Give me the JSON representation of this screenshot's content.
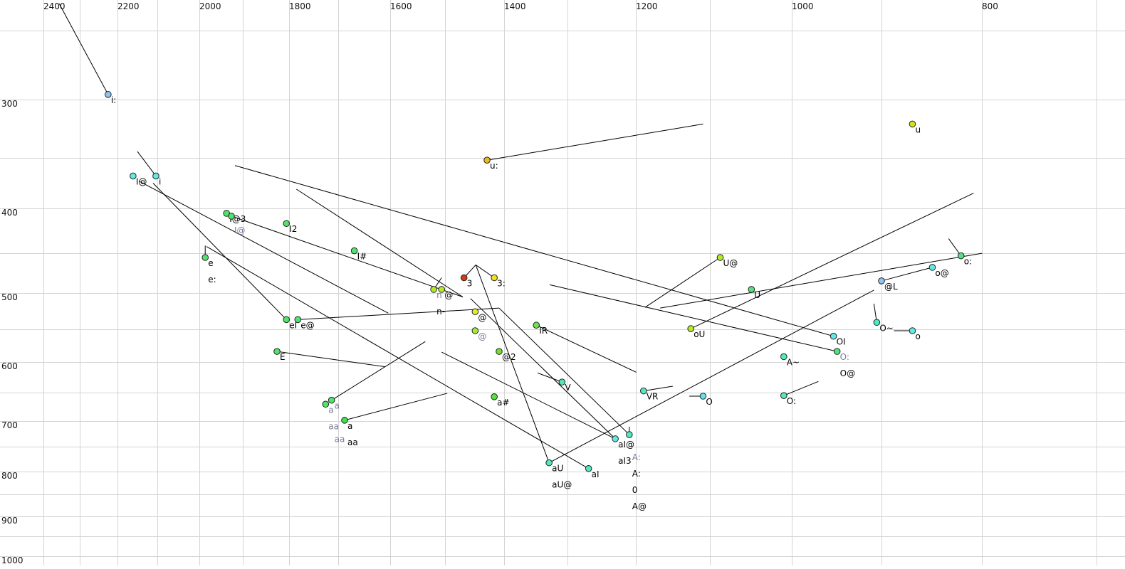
{
  "chart_data": {
    "type": "scatter",
    "title": "",
    "x_axis": {
      "label": "",
      "scale": "log",
      "reversed": true,
      "range": [
        2400,
        700
      ],
      "ticks": [
        2400,
        2200,
        2000,
        1800,
        1600,
        1400,
        1200,
        1000,
        800
      ],
      "grid_step": 100,
      "position": "top"
    },
    "y_axis": {
      "label": "",
      "scale": "log",
      "reversed": false,
      "range": [
        231,
        1010
      ],
      "ticks": [
        300,
        400,
        500,
        600,
        700,
        800,
        900,
        1000
      ],
      "grid_step": 50,
      "position": "left"
    },
    "grid": true,
    "colors": {
      "muted_label": "#7a7a9a",
      "label": "#000000",
      "line": "#000000"
    },
    "points": [
      {
        "F2": 2225,
        "F1": 296,
        "color": "#8ec4f0",
        "labels": [
          {
            "text": "i:"
          }
        ]
      },
      {
        "F2": 1428,
        "F1": 352,
        "color": "#f0b428",
        "labels": [
          {
            "text": "u:"
          }
        ]
      },
      {
        "F2": 868,
        "F1": 320,
        "color": "#d4e41c",
        "labels": [
          {
            "text": "u"
          }
        ]
      },
      {
        "F2": 2161,
        "F1": 367,
        "color": "#64e8e4",
        "labels": [
          {
            "text": "I@"
          }
        ]
      },
      {
        "F2": 2104,
        "F1": 367,
        "color": "#64e8e4",
        "labels": [
          {
            "text": "i"
          }
        ]
      },
      {
        "F2": 1937,
        "F1": 405,
        "color": "#50e46c",
        "labels": [
          {
            "text": "I@3"
          }
        ]
      },
      {
        "F2": 1926,
        "F1": 408,
        "color": "#50e46c",
        "labels": [
          {
            "text": "I@",
            "muted": true
          }
        ]
      },
      {
        "F2": 1806,
        "F1": 416,
        "color": "#50e46c",
        "labels": [
          {
            "text": "I2"
          }
        ]
      },
      {
        "F2": 1986,
        "F1": 455,
        "color": "#50e46c",
        "labels": [
          {
            "text": "e"
          },
          {
            "text": "e:"
          }
        ]
      },
      {
        "F2": 1668,
        "F1": 447,
        "color": "#50e46c",
        "labels": [
          {
            "text": "I#"
          }
        ]
      },
      {
        "F2": 1520,
        "F1": 495,
        "color": "#b4ec24",
        "labels": [
          {
            "text": "n",
            "muted": true
          },
          {
            "text": "n-"
          }
        ]
      },
      {
        "F2": 1506,
        "F1": 495,
        "color": "#b4ec24",
        "labels": [
          {
            "text": "@"
          }
        ]
      },
      {
        "F2": 1467,
        "F1": 480,
        "color": "#d23a14",
        "labels": [
          {
            "text": "3"
          }
        ]
      },
      {
        "F2": 1416,
        "F1": 480,
        "color": "#f0e41c",
        "labels": [
          {
            "text": "3:"
          }
        ]
      },
      {
        "F2": 1806,
        "F1": 536,
        "color": "#50e46c",
        "labels": [
          {
            "text": "eI"
          }
        ]
      },
      {
        "F2": 1782,
        "F1": 536,
        "color": "#50e46c",
        "labels": [
          {
            "text": "e@"
          }
        ]
      },
      {
        "F2": 1448,
        "F1": 525,
        "color": "#e4ec24",
        "labels": [
          {
            "text": "@"
          }
        ]
      },
      {
        "F2": 1448,
        "F1": 552,
        "color": "#a4ec3c",
        "labels": [
          {
            "text": "@",
            "muted": true
          }
        ]
      },
      {
        "F2": 1408,
        "F1": 583,
        "color": "#6ce428",
        "labels": [
          {
            "text": "@2"
          }
        ]
      },
      {
        "F2": 1348,
        "F1": 544,
        "color": "#6ce44c",
        "labels": [
          {
            "text": "IR"
          }
        ]
      },
      {
        "F2": 1826,
        "F1": 583,
        "color": "#50e46c",
        "labels": [
          {
            "text": "E"
          }
        ]
      },
      {
        "F2": 1308,
        "F1": 632,
        "color": "#54e8b4",
        "labels": [
          {
            "text": "V"
          }
        ]
      },
      {
        "F2": 1416,
        "F1": 657,
        "color": "#58e040",
        "labels": [
          {
            "text": "a#"
          }
        ]
      },
      {
        "F2": 1725,
        "F1": 670,
        "color": "#50e46c",
        "labels": [
          {
            "text": "a",
            "muted": true
          },
          {
            "text": "aa",
            "muted": true
          }
        ]
      },
      {
        "F2": 1713,
        "F1": 663,
        "color": "#50e46c",
        "labels": [
          {
            "text": "a",
            "muted": true
          },
          {
            "text": "aa",
            "muted": true
          }
        ]
      },
      {
        "F2": 1687,
        "F1": 699,
        "color": "#3ce050",
        "labels": [
          {
            "text": "a"
          },
          {
            "text": "aa"
          }
        ]
      },
      {
        "F2": 1229,
        "F1": 734,
        "color": "#64e8e4",
        "labels": [
          {
            "text": "aI@"
          },
          {
            "text": "aI3"
          }
        ]
      },
      {
        "F2": 1209,
        "F1": 726,
        "color": "#54e8c0",
        "labels": [
          {
            "text": "A:",
            "muted": true
          },
          {
            "text": "A:"
          },
          {
            "text": "0"
          },
          {
            "text": "A@"
          }
        ]
      },
      {
        "F2": 1328,
        "F1": 782,
        "color": "#54e8c0",
        "labels": [
          {
            "text": "aU"
          },
          {
            "text": "aU@"
          }
        ]
      },
      {
        "F2": 1268,
        "F1": 794,
        "color": "#54e8c0",
        "labels": [
          {
            "text": "aI"
          }
        ]
      },
      {
        "F2": 1189,
        "F1": 647,
        "color": "#54e8c0",
        "labels": [
          {
            "text": "VR"
          }
        ]
      },
      {
        "F2": 1109,
        "F1": 656,
        "color": "#64e0ec",
        "labels": [
          {
            "text": "O"
          }
        ]
      },
      {
        "F2": 1009,
        "F1": 655,
        "color": "#54e8c0",
        "labels": [
          {
            "text": "O:"
          }
        ]
      },
      {
        "F2": 1009,
        "F1": 591,
        "color": "#54e8c0",
        "labels": [
          {
            "text": "A~"
          }
        ]
      },
      {
        "F2": 1125,
        "F1": 549,
        "color": "#b4ec24",
        "labels": [
          {
            "text": "oU"
          }
        ]
      },
      {
        "F2": 1087,
        "F1": 455,
        "color": "#b4ec24",
        "labels": [
          {
            "text": "U@"
          }
        ]
      },
      {
        "F2": 1048,
        "F1": 495,
        "color": "#50e47c",
        "labels": [
          {
            "text": "U"
          }
        ]
      },
      {
        "F2": 952,
        "F1": 560,
        "color": "#64e8e4",
        "labels": [
          {
            "text": "OI"
          }
        ]
      },
      {
        "F2": 948,
        "F1": 583,
        "color": "#50e47c",
        "labels": [
          {
            "text": "O:",
            "muted": true
          },
          {
            "text": "O@"
          }
        ]
      },
      {
        "F2": 900,
        "F1": 484,
        "color": "#8ec4f0",
        "labels": [
          {
            "text": "@L"
          }
        ]
      },
      {
        "F2": 848,
        "F1": 467,
        "color": "#64e8e4",
        "labels": [
          {
            "text": "o@"
          }
        ]
      },
      {
        "F2": 820,
        "F1": 453,
        "color": "#50e47c",
        "labels": [
          {
            "text": "o:"
          }
        ]
      },
      {
        "F2": 905,
        "F1": 540,
        "color": "#54e8c0",
        "labels": [
          {
            "text": "O~"
          }
        ]
      },
      {
        "F2": 868,
        "F1": 552,
        "color": "#64e8e4",
        "labels": [
          {
            "text": "o"
          }
        ]
      }
    ],
    "segments": [
      {
        "from": [
          2356,
          233
        ],
        "to": [
          2225,
          296
        ]
      },
      {
        "from": [
          1428,
          352
        ],
        "to": [
          1109,
          320
        ]
      },
      {
        "from": [
          2150,
          344
        ],
        "to": [
          2104,
          367
        ]
      },
      {
        "from": [
          2146,
          372
        ],
        "to": [
          1603,
          527
        ]
      },
      {
        "from": [
          2111,
          374
        ],
        "to": [
          1806,
          536
        ]
      },
      {
        "from": [
          1918,
          357
        ],
        "to": [
          952,
          560
        ]
      },
      {
        "from": [
          1785,
          380
        ],
        "to": [
          1469,
          505
        ]
      },
      {
        "from": [
          1926,
          408
        ],
        "to": [
          1469,
          505
        ]
      },
      {
        "from": [
          1986,
          441
        ],
        "to": [
          1986,
          455
        ]
      },
      {
        "from": [
          1983,
          442
        ],
        "to": [
          1268,
          794
        ]
      },
      {
        "from": [
          1782,
          536
        ],
        "to": [
          1408,
          520
        ]
      },
      {
        "from": [
          1408,
          520
        ],
        "to": [
          1209,
          726
        ]
      },
      {
        "from": [
          1826,
          583
        ],
        "to": [
          1609,
          607
        ]
      },
      {
        "from": [
          1713,
          663
        ],
        "to": [
          1535,
          568
        ],
        "muted": true
      },
      {
        "from": [
          1687,
          699
        ],
        "to": [
          1496,
          651
        ]
      },
      {
        "from": [
          1506,
          584
        ],
        "to": [
          1229,
          734
        ]
      },
      {
        "from": [
          1456,
          507
        ],
        "to": [
          1229,
          734
        ]
      },
      {
        "from": [
          1467,
          480
        ],
        "to": [
          1447,
          464
        ]
      },
      {
        "from": [
          1447,
          464
        ],
        "to": [
          1416,
          480
        ]
      },
      {
        "from": [
          1447,
          464
        ],
        "to": [
          1328,
          782
        ]
      },
      {
        "from": [
          1348,
          544
        ],
        "to": [
          1199,
          616
        ]
      },
      {
        "from": [
          1346,
          617
        ],
        "to": [
          1308,
          632
        ]
      },
      {
        "from": [
          1328,
          782
        ],
        "to": [
          908,
          496
        ]
      },
      {
        "from": [
          1125,
          549
        ],
        "to": [
          808,
          384
        ]
      },
      {
        "from": [
          1327,
          489
        ],
        "to": [
          948,
          583
        ]
      },
      {
        "from": [
          1187,
          519
        ],
        "to": [
          1087,
          455
        ]
      },
      {
        "from": [
          1166,
          520
        ],
        "to": [
          800,
          450
        ]
      },
      {
        "from": [
          900,
          484
        ],
        "to": [
          848,
          467
        ]
      },
      {
        "from": [
          832,
          433
        ],
        "to": [
          820,
          453
        ]
      },
      {
        "from": [
          1189,
          647
        ],
        "to": [
          1149,
          639
        ]
      },
      {
        "from": [
          1127,
          656
        ],
        "to": [
          1109,
          656
        ]
      },
      {
        "from": [
          1009,
          655
        ],
        "to": [
          969,
          631
        ]
      },
      {
        "from": [
          908,
          514
        ],
        "to": [
          905,
          540
        ]
      },
      {
        "from": [
          887,
          552
        ],
        "to": [
          868,
          552
        ]
      },
      {
        "from": [
          1209,
          711
        ],
        "to": [
          1209,
          726
        ]
      },
      {
        "from": [
          1520,
          495
        ],
        "to": [
          1506,
          480
        ]
      }
    ]
  }
}
